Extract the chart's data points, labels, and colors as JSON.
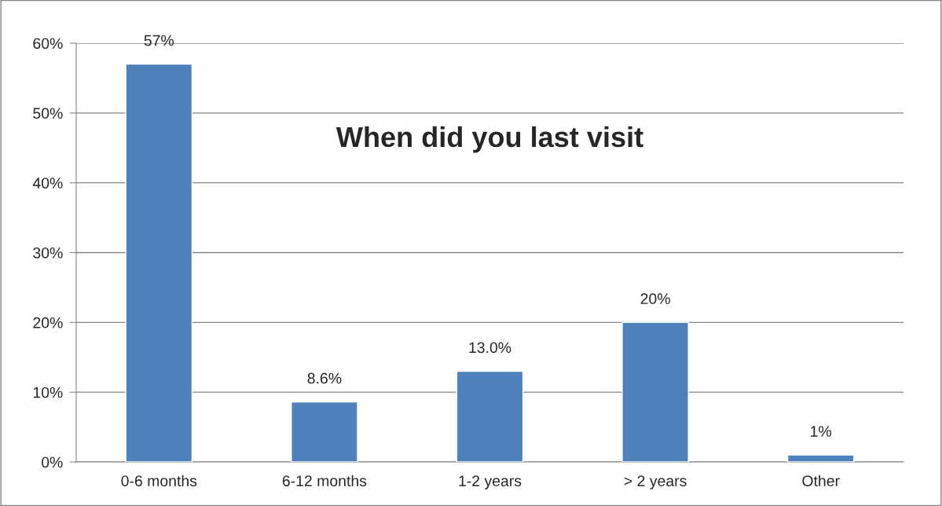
{
  "chart_data": {
    "type": "bar",
    "title": "When did you last visit",
    "categories": [
      "0-6 months",
      "6-12 months",
      "1-2 years",
      "> 2 years",
      "Other"
    ],
    "values": [
      57,
      8.6,
      13.0,
      20,
      1
    ],
    "value_labels": [
      "57%",
      "8.6%",
      "13.0%",
      "20%",
      "1%"
    ],
    "color": "#4f81bd",
    "ylim": [
      0,
      60
    ],
    "yticks": [
      {
        "value": 0,
        "label": "0%"
      },
      {
        "value": 10,
        "label": "10%"
      },
      {
        "value": 20,
        "label": "20%"
      },
      {
        "value": 30,
        "label": "30%"
      },
      {
        "value": 40,
        "label": "40%"
      },
      {
        "value": 50,
        "label": "50%"
      },
      {
        "value": 60,
        "label": "60%"
      }
    ],
    "grid": "y",
    "legend": false
  }
}
